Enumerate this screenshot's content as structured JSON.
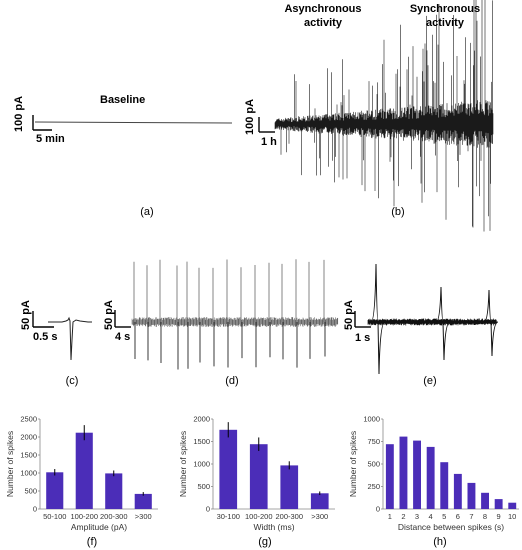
{
  "panels": {
    "a": {
      "label": "(a)",
      "scale_y": "100 pA",
      "scale_x": "5 min",
      "annotation": "Baseline"
    },
    "b": {
      "label": "(b)",
      "scale_y": "100 pA",
      "scale_x": "1 h",
      "annotation_1_line1": "Asynchronous",
      "annotation_1_line2": "activity",
      "annotation_2_line1": "Synchronous",
      "annotation_2_line2": "activity"
    },
    "c": {
      "label": "(c)",
      "scale_y": "50 pA",
      "scale_x": "0.5 s"
    },
    "d": {
      "label": "(d)",
      "scale_y": "50 pA",
      "scale_x": "4 s"
    },
    "e": {
      "label": "(e)",
      "scale_y": "50 pA",
      "scale_x": "1 s"
    },
    "f": {
      "label": "(f)"
    },
    "g": {
      "label": "(g)"
    },
    "h": {
      "label": "(h)"
    }
  },
  "bar_color": "#4b2db8",
  "chart_data": [
    {
      "id": "f",
      "type": "bar",
      "categories": [
        "50-100",
        "100-200",
        "200-300",
        ">300"
      ],
      "values": [
        1020,
        2120,
        990,
        420
      ],
      "errors": [
        90,
        210,
        80,
        50
      ],
      "xlabel": "Amplitude (pA)",
      "ylabel": "Number of spikes",
      "ylim": [
        0,
        2500
      ],
      "yticks": [
        0,
        500,
        1000,
        1500,
        2000,
        2500
      ]
    },
    {
      "id": "g",
      "type": "bar",
      "categories": [
        "30-100",
        "100-200",
        "200-300",
        ">300"
      ],
      "values": [
        1760,
        1440,
        970,
        350
      ],
      "errors": [
        170,
        150,
        90,
        40
      ],
      "xlabel": "Width (ms)",
      "ylabel": "Number of spikes",
      "ylim": [
        0,
        2000
      ],
      "yticks": [
        0,
        500,
        1000,
        1500,
        2000
      ]
    },
    {
      "id": "h",
      "type": "bar",
      "categories": [
        "1",
        "2",
        "3",
        "4",
        "5",
        "6",
        "7",
        "8",
        "9",
        "10"
      ],
      "values": [
        720,
        805,
        760,
        690,
        520,
        390,
        290,
        180,
        110,
        70
      ],
      "xlabel": "Distance between spikes (s)",
      "ylabel": "Number of spikes",
      "ylim": [
        0,
        1000
      ],
      "yticks": [
        0,
        250,
        500,
        750,
        1000
      ]
    }
  ]
}
